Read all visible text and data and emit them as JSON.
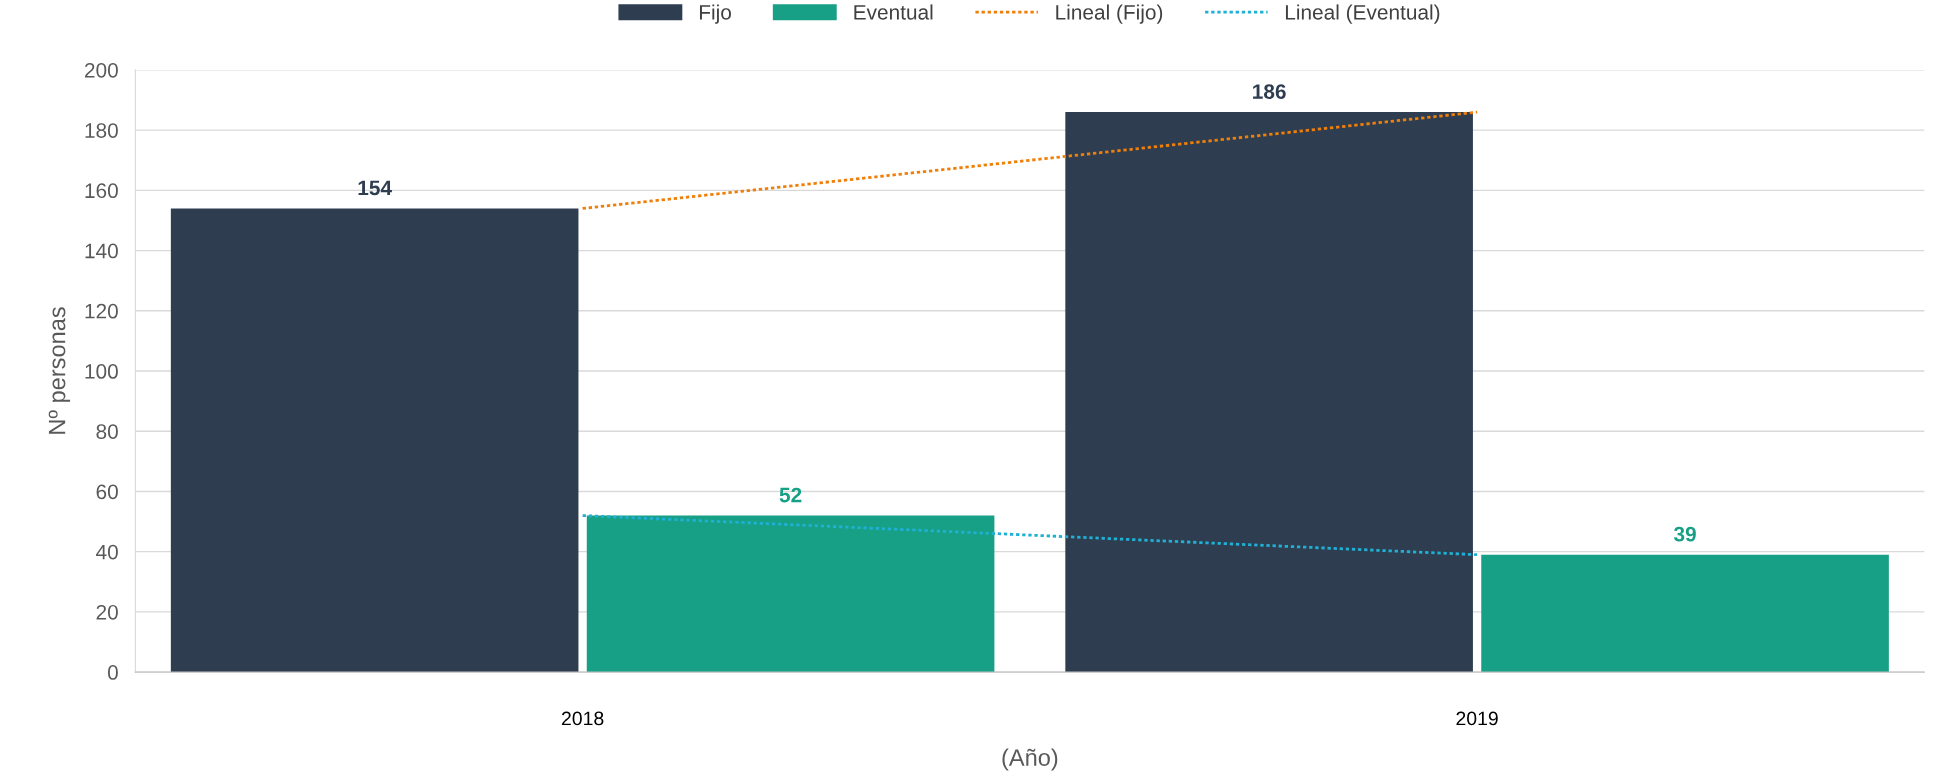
{
  "chart_data": {
    "type": "bar",
    "xlabel": "(Año)",
    "ylabel": "Nº personas",
    "categories": [
      "2018",
      "2019"
    ],
    "series": [
      {
        "name": "Fijo",
        "color": "#2e3e50",
        "values": [
          154,
          186
        ],
        "value_labels": [
          "154",
          "186"
        ]
      },
      {
        "name": "Eventual",
        "color": "#17a086",
        "values": [
          52,
          39
        ],
        "value_labels": [
          "52",
          "39"
        ]
      },
      {
        "name": "Lineal (Fijo)",
        "type": "line",
        "color": "#f07f09",
        "values": [
          154,
          186
        ],
        "line_style": "dotted"
      },
      {
        "name": "Lineal (Eventual)",
        "type": "line",
        "color": "#1fb0d4",
        "values": [
          52,
          39
        ],
        "line_style": "dotted"
      }
    ],
    "ylim": [
      0,
      200
    ],
    "yticks": [
      0,
      20,
      40,
      60,
      80,
      100,
      120,
      140,
      160,
      180,
      200
    ],
    "grid": "y",
    "legend": "top"
  }
}
